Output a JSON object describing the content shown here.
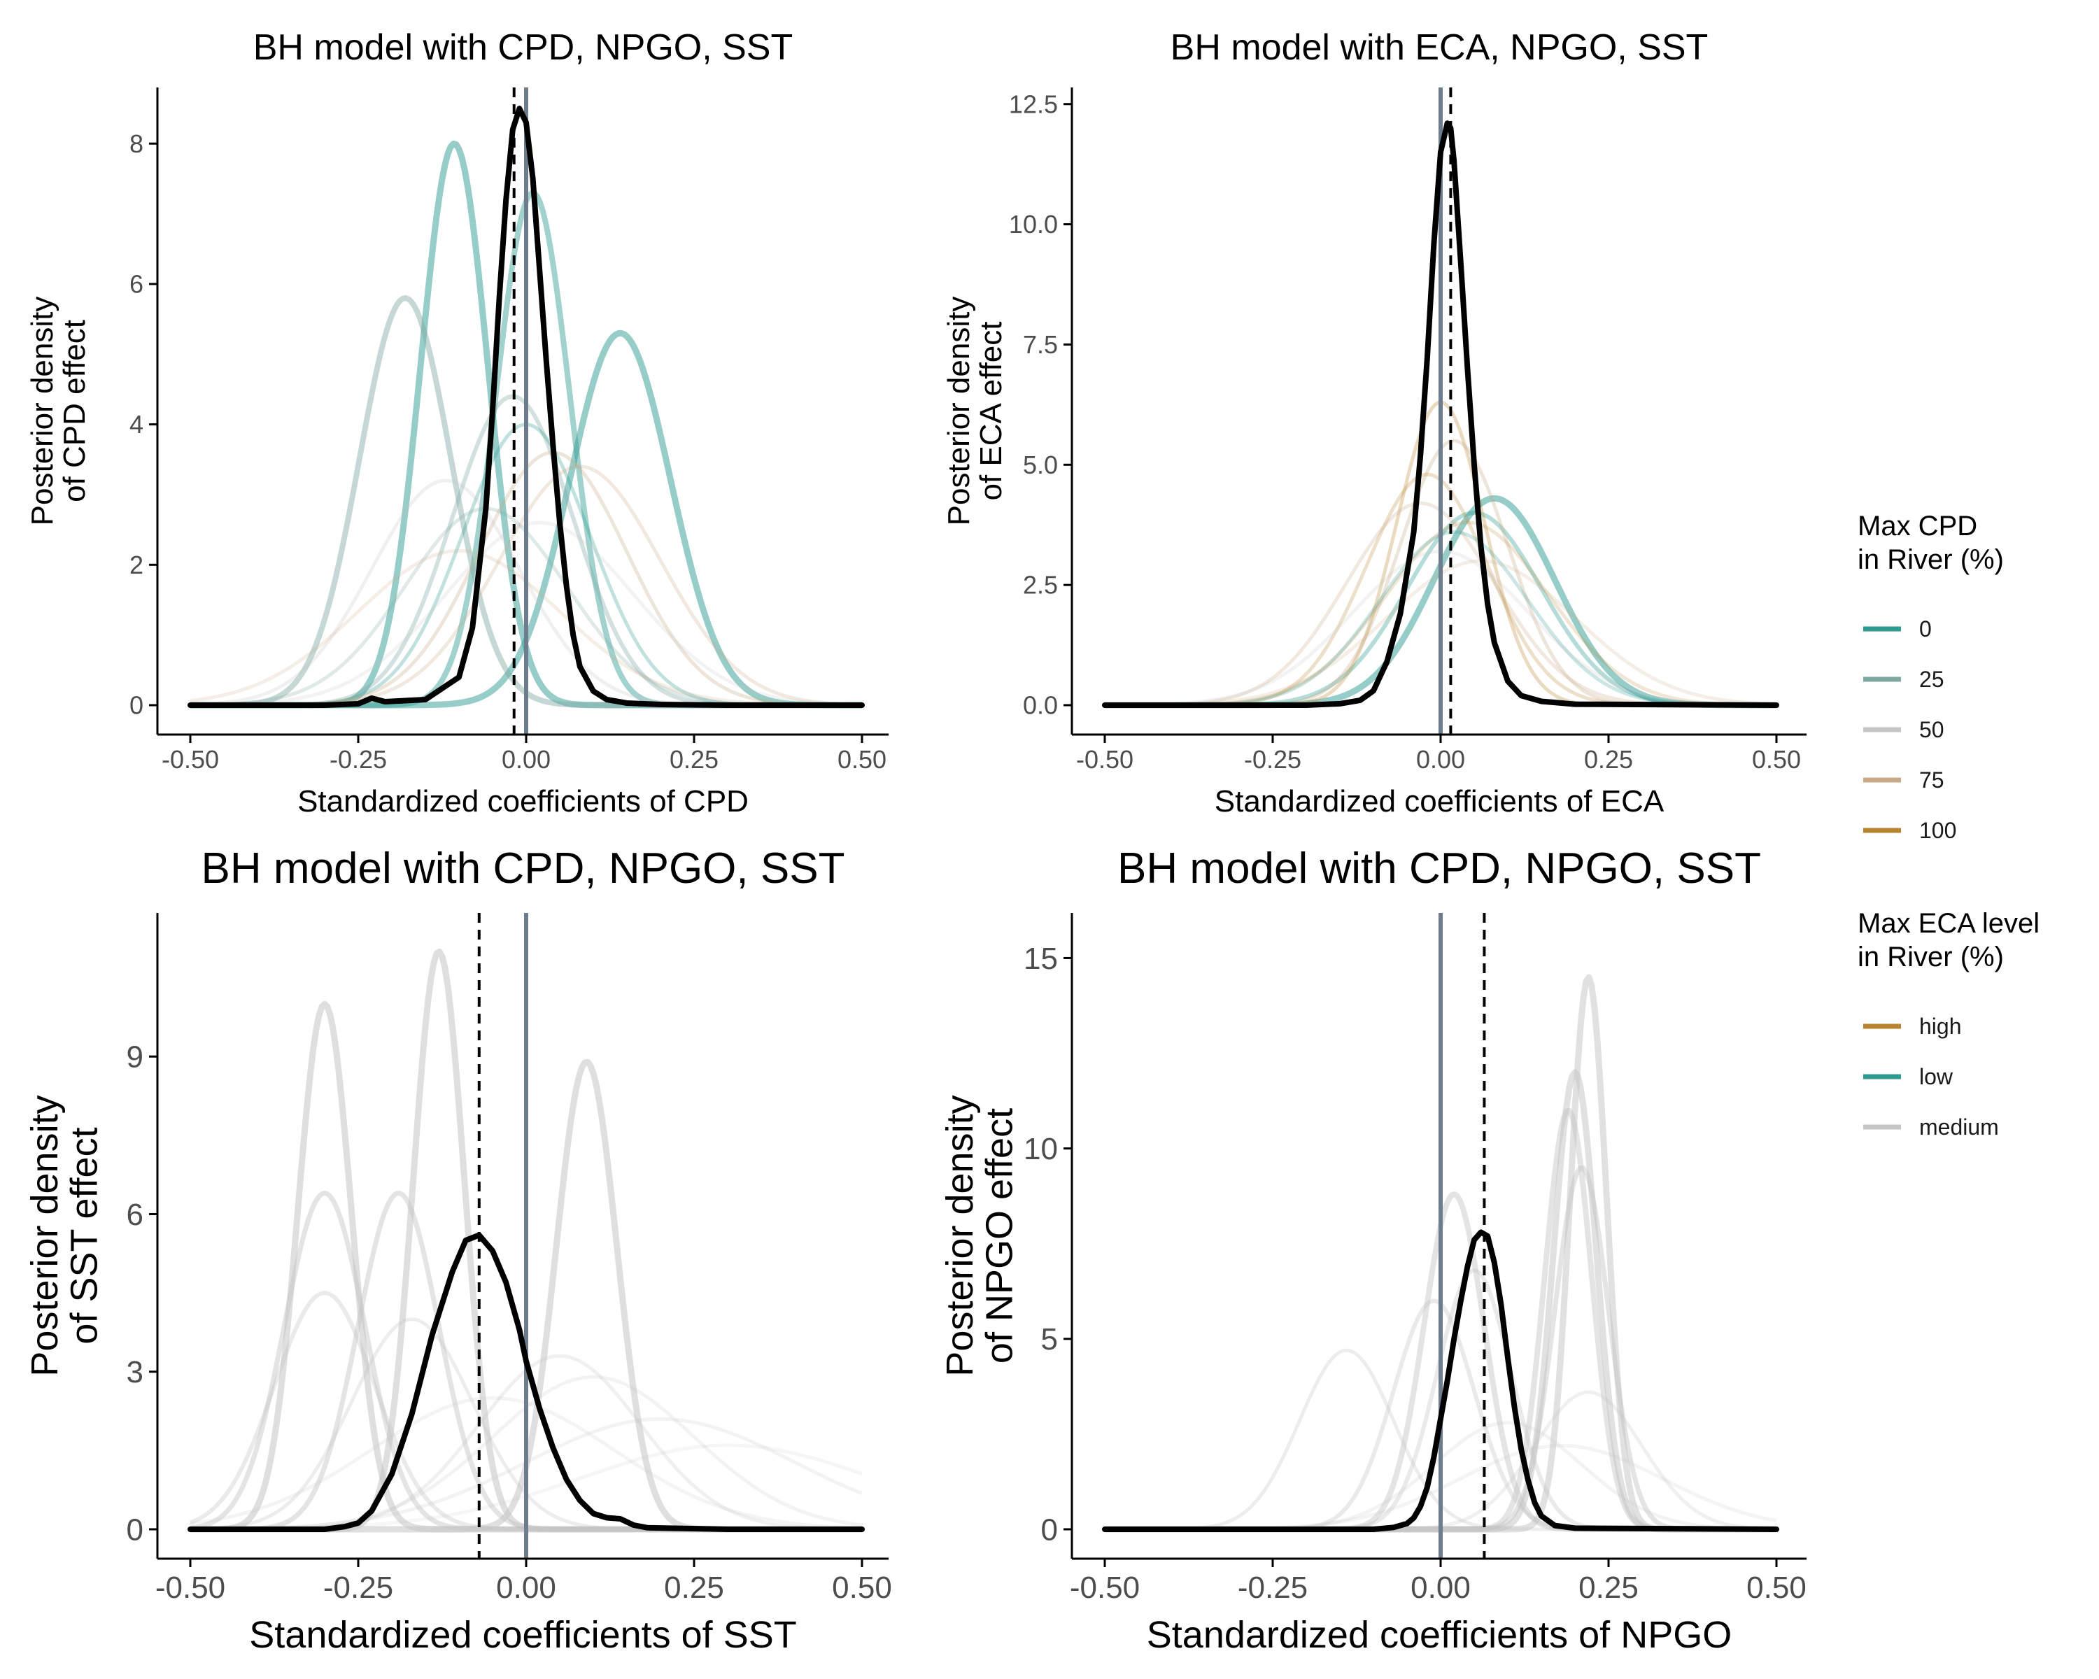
{
  "chart_data": [
    {
      "id": "cpd",
      "type": "line",
      "title": "BH model with CPD, NPGO, SST",
      "xlabel": "Standardized coefficients of CPD",
      "ylabel_lines": [
        "Posterior density",
        "of CPD effect"
      ],
      "xlim": [
        -0.5,
        0.5
      ],
      "ylim": [
        0,
        8.7
      ],
      "xticks": [
        -0.5,
        -0.25,
        0.0,
        0.25,
        0.5
      ],
      "xtick_labels": [
        "-0.50",
        "-0.25",
        "0.00",
        "0.25",
        "0.50"
      ],
      "yticks": [
        0,
        2,
        4,
        6,
        8
      ],
      "ytick_labels": [
        "0",
        "2",
        "4",
        "6",
        "8"
      ],
      "vline_solid": 0.0,
      "vline_dashed": -0.018,
      "background_curves": [
        {
          "group": "0",
          "center": -0.107,
          "peak": 8.0,
          "sd": 0.05,
          "alpha": 0.5,
          "stroke": 9
        },
        {
          "group": "0",
          "center": 0.14,
          "peak": 5.3,
          "sd": 0.075,
          "alpha": 0.5,
          "stroke": 9
        },
        {
          "group": "0",
          "center": 0.01,
          "peak": 7.3,
          "sd": 0.055,
          "alpha": 0.45,
          "stroke": 8
        },
        {
          "group": "25",
          "center": -0.18,
          "peak": 5.8,
          "sd": 0.068,
          "alpha": 0.45,
          "stroke": 8
        },
        {
          "group": "25",
          "center": -0.02,
          "peak": 4.4,
          "sd": 0.09,
          "alpha": 0.35,
          "stroke": 6
        },
        {
          "group": "0",
          "center": 0.0,
          "peak": 4.0,
          "sd": 0.095,
          "alpha": 0.3,
          "stroke": 5
        },
        {
          "group": "75",
          "center": 0.04,
          "peak": 3.6,
          "sd": 0.11,
          "alpha": 0.3,
          "stroke": 5
        },
        {
          "group": "75",
          "center": 0.08,
          "peak": 3.4,
          "sd": 0.12,
          "alpha": 0.25,
          "stroke": 5
        },
        {
          "group": "50",
          "center": -0.12,
          "peak": 3.2,
          "sd": 0.11,
          "alpha": 0.25,
          "stroke": 5
        },
        {
          "group": "25",
          "center": -0.06,
          "peak": 2.8,
          "sd": 0.12,
          "alpha": 0.25,
          "stroke": 5
        },
        {
          "group": "50",
          "center": 0.02,
          "peak": 2.6,
          "sd": 0.14,
          "alpha": 0.2,
          "stroke": 5
        },
        {
          "group": "75",
          "center": -0.1,
          "peak": 2.2,
          "sd": 0.15,
          "alpha": 0.2,
          "stroke": 5
        }
      ],
      "posterior_x": [
        -0.5,
        -0.3,
        -0.25,
        -0.23,
        -0.21,
        -0.15,
        -0.1,
        -0.08,
        -0.06,
        -0.05,
        -0.04,
        -0.03,
        -0.02,
        -0.01,
        0.0,
        0.01,
        0.02,
        0.03,
        0.04,
        0.05,
        0.06,
        0.07,
        0.08,
        0.1,
        0.12,
        0.15,
        0.2,
        0.3,
        0.5
      ],
      "posterior_y": [
        0,
        0,
        0.02,
        0.1,
        0.05,
        0.08,
        0.4,
        1.1,
        2.8,
        4.2,
        5.8,
        7.2,
        8.2,
        8.5,
        8.3,
        7.5,
        6.2,
        4.9,
        3.7,
        2.6,
        1.7,
        1.0,
        0.55,
        0.2,
        0.08,
        0.03,
        0.01,
        0,
        0
      ]
    },
    {
      "id": "eca",
      "type": "line",
      "title": "BH model with ECA, NPGO, SST",
      "xlabel": "Standardized coefficients of ECA",
      "ylabel_lines": [
        "Posterior density",
        "of ECA effect"
      ],
      "xlim": [
        -0.5,
        0.5
      ],
      "ylim": [
        0,
        12.7
      ],
      "xticks": [
        -0.5,
        -0.25,
        0.0,
        0.25,
        0.5
      ],
      "xtick_labels": [
        "-0.50",
        "-0.25",
        "0.00",
        "0.25",
        "0.50"
      ],
      "yticks": [
        0,
        2.5,
        5,
        7.5,
        10,
        12.5
      ],
      "ytick_labels": [
        "0.0",
        "2.5",
        "5.0",
        "7.5",
        "10.0",
        "12.5"
      ],
      "vline_solid": 0.0,
      "vline_dashed": 0.015,
      "background_curves": [
        {
          "group": "0",
          "center": 0.08,
          "peak": 4.3,
          "sd": 0.09,
          "alpha": 0.5,
          "stroke": 9
        },
        {
          "group": "0",
          "center": 0.05,
          "peak": 4.0,
          "sd": 0.1,
          "alpha": 0.35,
          "stroke": 6
        },
        {
          "group": "100",
          "center": 0.0,
          "peak": 6.3,
          "sd": 0.065,
          "alpha": 0.3,
          "stroke": 5
        },
        {
          "group": "75",
          "center": 0.02,
          "peak": 5.5,
          "sd": 0.08,
          "alpha": 0.3,
          "stroke": 5
        },
        {
          "group": "100",
          "center": -0.02,
          "peak": 4.8,
          "sd": 0.09,
          "alpha": 0.25,
          "stroke": 5
        },
        {
          "group": "75",
          "center": -0.03,
          "peak": 4.2,
          "sd": 0.11,
          "alpha": 0.25,
          "stroke": 5
        },
        {
          "group": "100",
          "center": 0.04,
          "peak": 3.8,
          "sd": 0.12,
          "alpha": 0.2,
          "stroke": 5
        },
        {
          "group": "50",
          "center": 0.0,
          "peak": 3.2,
          "sd": 0.13,
          "alpha": 0.2,
          "stroke": 5
        },
        {
          "group": "0",
          "center": 0.02,
          "peak": 3.6,
          "sd": 0.11,
          "alpha": 0.25,
          "stroke": 5
        },
        {
          "group": "75",
          "center": 0.06,
          "peak": 3.0,
          "sd": 0.14,
          "alpha": 0.2,
          "stroke": 5
        }
      ],
      "posterior_x": [
        -0.5,
        -0.2,
        -0.15,
        -0.12,
        -0.11,
        -0.1,
        -0.08,
        -0.06,
        -0.04,
        -0.03,
        -0.02,
        -0.01,
        0.0,
        0.01,
        0.015,
        0.02,
        0.03,
        0.04,
        0.05,
        0.06,
        0.07,
        0.08,
        0.1,
        0.12,
        0.15,
        0.2,
        0.5
      ],
      "posterior_y": [
        0,
        0,
        0.03,
        0.1,
        0.2,
        0.3,
        0.9,
        1.9,
        3.6,
        5.2,
        7.2,
        9.6,
        11.5,
        12.1,
        12.0,
        11.3,
        9.2,
        7.0,
        5.0,
        3.3,
        2.1,
        1.3,
        0.5,
        0.2,
        0.08,
        0.02,
        0
      ]
    },
    {
      "id": "sst",
      "type": "line",
      "title": "BH model with CPD, NPGO, SST",
      "xlabel": "Standardized coefficients of SST",
      "ylabel_lines": [
        "Posterior density",
        "of SST effect"
      ],
      "xlim": [
        -0.5,
        0.5
      ],
      "ylim": [
        0,
        11.6
      ],
      "xticks": [
        -0.5,
        -0.25,
        0.0,
        0.25,
        0.5
      ],
      "xtick_labels": [
        "-0.50",
        "-0.25",
        "0.00",
        "0.25",
        "0.50"
      ],
      "yticks": [
        0,
        3,
        6,
        9
      ],
      "ytick_labels": [
        "0",
        "3",
        "6",
        "9"
      ],
      "vline_solid": 0.0,
      "vline_dashed": -0.07,
      "background_curves": [
        {
          "group": "medium",
          "center": -0.3,
          "peak": 10.0,
          "sd": 0.04,
          "alpha": 0.55,
          "stroke": 9
        },
        {
          "group": "medium",
          "center": -0.13,
          "peak": 11.0,
          "sd": 0.038,
          "alpha": 0.55,
          "stroke": 9
        },
        {
          "group": "medium",
          "center": 0.09,
          "peak": 8.9,
          "sd": 0.045,
          "alpha": 0.55,
          "stroke": 9
        },
        {
          "group": "medium",
          "center": -0.3,
          "peak": 6.4,
          "sd": 0.06,
          "alpha": 0.45,
          "stroke": 7
        },
        {
          "group": "medium",
          "center": -0.19,
          "peak": 6.4,
          "sd": 0.06,
          "alpha": 0.45,
          "stroke": 7
        },
        {
          "group": "medium",
          "center": -0.3,
          "peak": 4.5,
          "sd": 0.075,
          "alpha": 0.35,
          "stroke": 6
        },
        {
          "group": "medium",
          "center": -0.17,
          "peak": 4.0,
          "sd": 0.09,
          "alpha": 0.3,
          "stroke": 5
        },
        {
          "group": "medium",
          "center": 0.05,
          "peak": 3.3,
          "sd": 0.12,
          "alpha": 0.25,
          "stroke": 5
        },
        {
          "group": "medium",
          "center": 0.1,
          "peak": 2.9,
          "sd": 0.15,
          "alpha": 0.2,
          "stroke": 5
        },
        {
          "group": "medium",
          "center": 0.2,
          "peak": 2.1,
          "sd": 0.2,
          "alpha": 0.2,
          "stroke": 5
        },
        {
          "group": "medium",
          "center": -0.05,
          "peak": 2.5,
          "sd": 0.18,
          "alpha": 0.18,
          "stroke": 5
        },
        {
          "group": "medium",
          "center": 0.3,
          "peak": 1.6,
          "sd": 0.22,
          "alpha": 0.15,
          "stroke": 5
        }
      ],
      "posterior_x": [
        -0.5,
        -0.3,
        -0.27,
        -0.25,
        -0.23,
        -0.2,
        -0.17,
        -0.14,
        -0.11,
        -0.09,
        -0.07,
        -0.05,
        -0.03,
        -0.01,
        0.0,
        0.02,
        0.04,
        0.06,
        0.08,
        0.1,
        0.12,
        0.14,
        0.16,
        0.18,
        0.22,
        0.3,
        0.5
      ],
      "posterior_y": [
        0,
        0,
        0.05,
        0.12,
        0.35,
        1.05,
        2.2,
        3.7,
        4.9,
        5.5,
        5.6,
        5.3,
        4.7,
        3.8,
        3.2,
        2.3,
        1.55,
        0.95,
        0.55,
        0.3,
        0.22,
        0.2,
        0.08,
        0.03,
        0.02,
        0,
        0
      ]
    },
    {
      "id": "npgo",
      "type": "line",
      "title": "BH model with CPD, NPGO, SST",
      "xlabel": "Standardized coefficients of NPGO",
      "ylabel_lines": [
        "Posterior density",
        "of NPGO effect"
      ],
      "xlim": [
        -0.5,
        0.5
      ],
      "ylim": [
        0,
        16
      ],
      "xticks": [
        -0.5,
        -0.25,
        0.0,
        0.25,
        0.5
      ],
      "xtick_labels": [
        "-0.50",
        "-0.25",
        "0.00",
        "0.25",
        "0.50"
      ],
      "yticks": [
        0,
        5,
        10,
        15
      ],
      "ytick_labels": [
        "0",
        "5",
        "10",
        "15"
      ],
      "vline_solid": 0.0,
      "vline_dashed": 0.065,
      "background_curves": [
        {
          "group": "medium",
          "center": 0.22,
          "peak": 14.5,
          "sd": 0.027,
          "alpha": 0.5,
          "stroke": 9
        },
        {
          "group": "medium",
          "center": 0.2,
          "peak": 12.0,
          "sd": 0.032,
          "alpha": 0.5,
          "stroke": 9
        },
        {
          "group": "medium",
          "center": 0.19,
          "peak": 11.0,
          "sd": 0.035,
          "alpha": 0.45,
          "stroke": 8
        },
        {
          "group": "medium",
          "center": 0.21,
          "peak": 9.5,
          "sd": 0.04,
          "alpha": 0.45,
          "stroke": 7
        },
        {
          "group": "medium",
          "center": 0.02,
          "peak": 8.8,
          "sd": 0.045,
          "alpha": 0.45,
          "stroke": 8
        },
        {
          "group": "medium",
          "center": 0.05,
          "peak": 6.8,
          "sd": 0.055,
          "alpha": 0.35,
          "stroke": 6
        },
        {
          "group": "medium",
          "center": -0.01,
          "peak": 6.0,
          "sd": 0.06,
          "alpha": 0.35,
          "stroke": 6
        },
        {
          "group": "medium",
          "center": -0.14,
          "peak": 4.7,
          "sd": 0.07,
          "alpha": 0.3,
          "stroke": 5
        },
        {
          "group": "medium",
          "center": 0.22,
          "peak": 3.6,
          "sd": 0.08,
          "alpha": 0.25,
          "stroke": 5
        },
        {
          "group": "medium",
          "center": 0.1,
          "peak": 2.8,
          "sd": 0.11,
          "alpha": 0.2,
          "stroke": 5
        },
        {
          "group": "medium",
          "center": 0.18,
          "peak": 2.2,
          "sd": 0.15,
          "alpha": 0.18,
          "stroke": 5
        }
      ],
      "posterior_x": [
        -0.5,
        -0.1,
        -0.07,
        -0.05,
        -0.04,
        -0.03,
        -0.02,
        -0.01,
        0.0,
        0.01,
        0.02,
        0.03,
        0.04,
        0.05,
        0.06,
        0.07,
        0.08,
        0.09,
        0.1,
        0.11,
        0.12,
        0.13,
        0.14,
        0.15,
        0.17,
        0.2,
        0.5
      ],
      "posterior_y": [
        0,
        0,
        0.05,
        0.15,
        0.3,
        0.6,
        1.1,
        1.9,
        2.9,
        3.9,
        5.0,
        6.0,
        6.9,
        7.6,
        7.8,
        7.7,
        7.0,
        5.9,
        4.5,
        3.2,
        2.1,
        1.3,
        0.7,
        0.35,
        0.1,
        0.03,
        0
      ]
    }
  ],
  "legend": {
    "cpd": {
      "title_lines": [
        "Max CPD",
        "in River (%)"
      ],
      "items": [
        {
          "label": "0",
          "color": "#2e9b93"
        },
        {
          "label": "25",
          "color": "#7fa8a2"
        },
        {
          "label": "50",
          "color": "#c4c4c4"
        },
        {
          "label": "75",
          "color": "#c8a885"
        },
        {
          "label": "100",
          "color": "#b8832e"
        }
      ]
    },
    "eca": {
      "title_lines": [
        "Max ECA level",
        "in River (%)"
      ],
      "items": [
        {
          "label": "high",
          "color": "#b8832e"
        },
        {
          "label": "low",
          "color": "#2e9b93"
        },
        {
          "label": "medium",
          "color": "#c4c4c4"
        }
      ]
    }
  },
  "colors": {
    "posterior": "#000000",
    "vline_solid": "#6d7d8e",
    "vline_dashed": "#000000",
    "axis": "#000000",
    "group_colors": {
      "0": "#2e9b93",
      "25": "#7fa8a2",
      "50": "#c4c4c4",
      "75": "#c8a885",
      "100": "#b8832e",
      "high": "#b8832e",
      "low": "#2e9b93",
      "medium": "#c4c4c4"
    }
  }
}
